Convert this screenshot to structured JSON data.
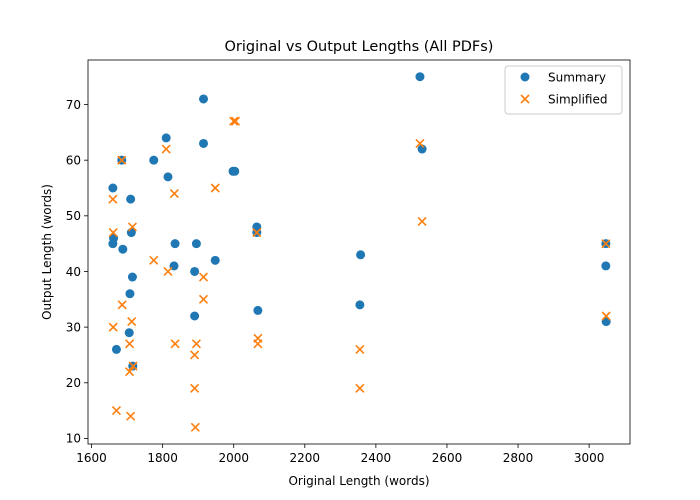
{
  "chart_data": {
    "type": "scatter",
    "title": "Original vs Output Lengths (All PDFs)",
    "xlabel": "Original Length (words)",
    "ylabel": "Output Length (words)",
    "xlim": [
      1590,
      3115
    ],
    "ylim": [
      9,
      78
    ],
    "xticks": [
      1600,
      1800,
      2000,
      2200,
      2400,
      2600,
      2800,
      3000
    ],
    "yticks": [
      10,
      20,
      30,
      40,
      50,
      60,
      70
    ],
    "grid": false,
    "legend_position": "top-right",
    "series": [
      {
        "name": "Summary",
        "marker": "circle",
        "color": "#1f77b4",
        "points": [
          [
            1660,
            55
          ],
          [
            1660,
            45
          ],
          [
            1662,
            46
          ],
          [
            1670,
            26
          ],
          [
            1685,
            60
          ],
          [
            1688,
            44
          ],
          [
            1706,
            29
          ],
          [
            1708,
            36
          ],
          [
            1710,
            53
          ],
          [
            1712,
            47
          ],
          [
            1715,
            39
          ],
          [
            1716,
            23
          ],
          [
            1775,
            60
          ],
          [
            1810,
            64
          ],
          [
            1815,
            57
          ],
          [
            1832,
            41
          ],
          [
            1835,
            45
          ],
          [
            1890,
            40
          ],
          [
            1890,
            32
          ],
          [
            1895,
            45
          ],
          [
            1915,
            71
          ],
          [
            1915,
            63
          ],
          [
            1948,
            42
          ],
          [
            1998,
            58
          ],
          [
            2003,
            58
          ],
          [
            2065,
            48
          ],
          [
            2065,
            47
          ],
          [
            2068,
            33
          ],
          [
            2355,
            34
          ],
          [
            2357,
            43
          ],
          [
            2524,
            75
          ],
          [
            2530,
            62
          ],
          [
            3047,
            45
          ],
          [
            3047,
            41
          ],
          [
            3048,
            31
          ]
        ]
      },
      {
        "name": "Simplified",
        "marker": "x",
        "color": "#ff7f0e",
        "points": [
          [
            1660,
            53
          ],
          [
            1661,
            47
          ],
          [
            1661,
            30
          ],
          [
            1670,
            15
          ],
          [
            1685,
            60
          ],
          [
            1686,
            34
          ],
          [
            1707,
            22
          ],
          [
            1707,
            27
          ],
          [
            1710,
            14
          ],
          [
            1713,
            31
          ],
          [
            1715,
            48
          ],
          [
            1717,
            23
          ],
          [
            1775,
            42
          ],
          [
            1810,
            62
          ],
          [
            1815,
            40
          ],
          [
            1833,
            54
          ],
          [
            1835,
            27
          ],
          [
            1890,
            25
          ],
          [
            1890,
            19
          ],
          [
            1892,
            12
          ],
          [
            1895,
            27
          ],
          [
            1915,
            39
          ],
          [
            1915,
            35
          ],
          [
            1948,
            55
          ],
          [
            2000,
            67
          ],
          [
            2005,
            67
          ],
          [
            2065,
            47
          ],
          [
            2068,
            28
          ],
          [
            2068,
            27
          ],
          [
            2355,
            26
          ],
          [
            2355,
            19
          ],
          [
            2524,
            63
          ],
          [
            2530,
            49
          ],
          [
            3047,
            45
          ],
          [
            3048,
            32
          ]
        ]
      }
    ]
  }
}
